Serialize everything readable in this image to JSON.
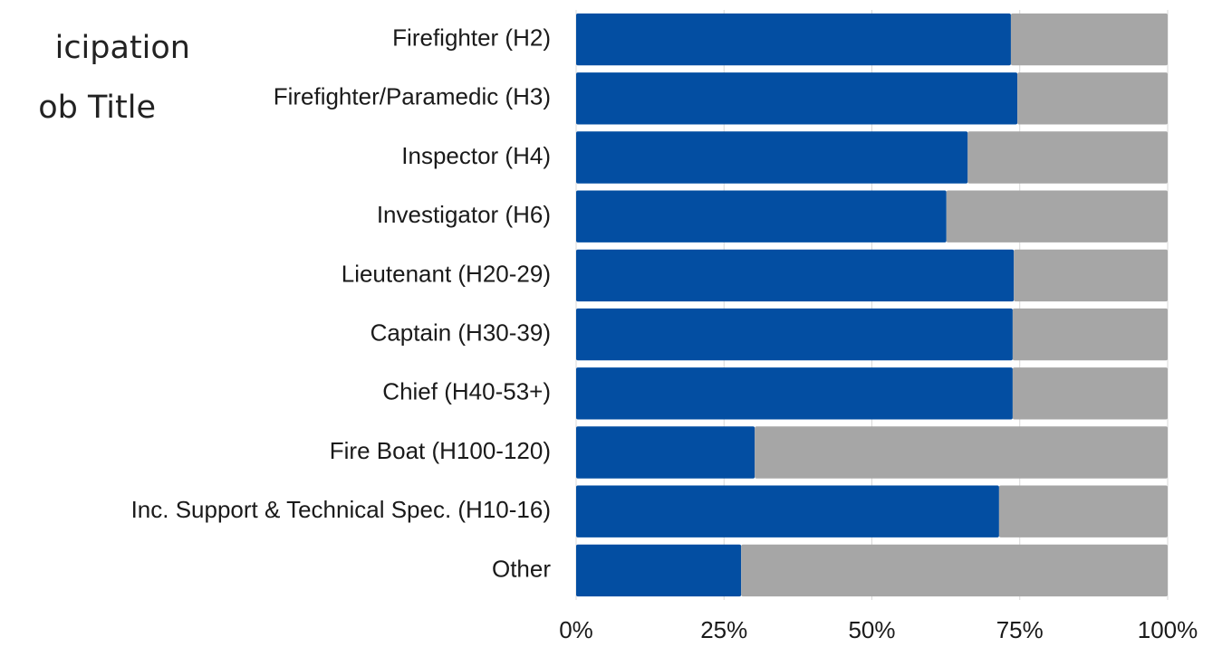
{
  "chart_data": {
    "type": "stacked_bar_horizontal",
    "title_lines": [
      "icipation",
      "ob Title"
    ],
    "categories": [
      "Firefighter (H2)",
      "Firefighter/Paramedic (H3)",
      "Inspector (H4)",
      "Investigator (H6)",
      "Lieutenant (H20-29)",
      "Captain (H30-39)",
      "Chief (H40-53+)",
      "Fire Boat (H100-120)",
      "Inc. Support & Technical Spec. (H10-16)",
      "Other"
    ],
    "series": [
      {
        "color": "#034ea2",
        "values": [
          73.5,
          74.6,
          66.2,
          62.6,
          74.0,
          73.8,
          73.8,
          30.2,
          71.5,
          27.9
        ]
      },
      {
        "color": "#a6a6a6",
        "values": [
          26.5,
          25.4,
          33.8,
          37.4,
          26.0,
          26.2,
          26.2,
          69.8,
          28.5,
          72.1
        ]
      }
    ],
    "xlim": [
      0,
      100
    ],
    "xticks": [
      {
        "value": 0,
        "label": "0%"
      },
      {
        "value": 25,
        "label": "25%"
      },
      {
        "value": 50,
        "label": "50%"
      },
      {
        "value": 75,
        "label": "75%"
      },
      {
        "value": 100,
        "label": "100%"
      }
    ],
    "grid": true
  }
}
